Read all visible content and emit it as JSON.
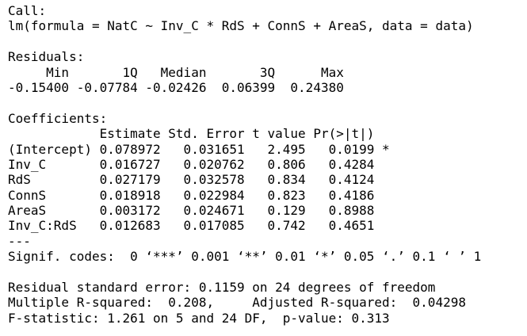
{
  "console": {
    "call_header": "Call:",
    "call_line": "lm(formula = NatC ~ Inv_C * RdS + ConnS + AreaS, data = data)",
    "residuals_header": "Residuals:",
    "residuals_labels": "     Min       1Q   Median       3Q      Max ",
    "residuals_values": "-0.15400 -0.07784 -0.02426  0.06399  0.24380 ",
    "coef_header": "Coefficients:",
    "coef_columns": "            Estimate Std. Error t value Pr(>|t|)  ",
    "coef_rows": [
      "(Intercept) 0.078972   0.031651   2.495   0.0199 *",
      "Inv_C       0.016727   0.020762   0.806   0.4284  ",
      "RdS         0.027179   0.032578   0.834   0.4124  ",
      "ConnS       0.018918   0.022984   0.823   0.4186  ",
      "AreaS       0.003172   0.024671   0.129   0.8988  ",
      "Inv_C:RdS   0.012683   0.017085   0.742   0.4651  "
    ],
    "separator": "---",
    "signif_codes": "Signif. codes:  0 ‘***’ 0.001 ‘**’ 0.01 ‘*’ 0.05 ‘.’ 0.1 ‘ ’ 1",
    "rse_line": "Residual standard error: 0.1159 on 24 degrees of freedom",
    "rsq_line": "Multiple R-squared:  0.208,\tAdjusted R-squared:  0.04298 ",
    "fstat_line": "F-statistic: 1.261 on 5 and 24 DF,  p-value: 0.313"
  }
}
